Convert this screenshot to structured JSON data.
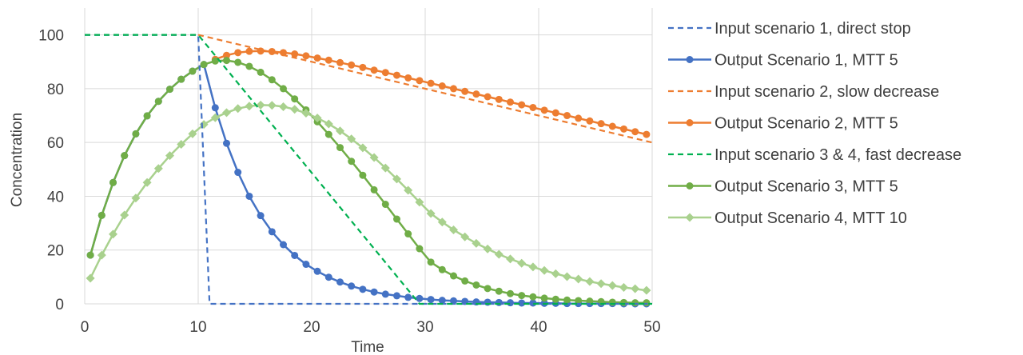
{
  "chart_data": {
    "type": "line",
    "title": "",
    "xlabel": "Time",
    "ylabel": "Concentration",
    "xlim": [
      0,
      50
    ],
    "ylim": [
      0,
      110
    ],
    "xticks": [
      0,
      10,
      20,
      30,
      40,
      50
    ],
    "yticks": [
      0,
      20,
      40,
      60,
      80,
      100
    ],
    "grid": true,
    "legend_position": "right",
    "series": [
      {
        "name": "Input scenario 1, direct stop",
        "color": "#4472C4",
        "style": "dashed",
        "marker": "none",
        "x": [
          0,
          10,
          10,
          11,
          50
        ],
        "y": [
          100,
          100,
          100,
          0,
          0
        ]
      },
      {
        "name": "Output Scenario 1, MTT 5",
        "color": "#4472C4",
        "style": "solid",
        "marker": "circle",
        "x": [
          0.5,
          1.5,
          2.5,
          3.5,
          4.5,
          5.5,
          6.5,
          7.5,
          8.5,
          9.5,
          10.5,
          11.5,
          12.5,
          13.5,
          14.5,
          15.5,
          16.5,
          17.5,
          18.5,
          19.5,
          20.5,
          21.5,
          22.5,
          23.5,
          24.5,
          25.5,
          26.5,
          27.5,
          28.5,
          29.5,
          30.5,
          31.5,
          32.5,
          33.5,
          34.5,
          35.5,
          36.5,
          37.5,
          38.5,
          39.5,
          40.5,
          41.5,
          42.5,
          43.5,
          44.5,
          45.5,
          46.5,
          47.5,
          48.5,
          49.5
        ],
        "y": [
          18.1,
          32.9,
          45.1,
          55.1,
          63.2,
          69.9,
          75.3,
          79.8,
          83.5,
          86.5,
          89.0,
          72.9,
          59.7,
          48.9,
          40.0,
          32.8,
          26.8,
          22.0,
          18.0,
          14.7,
          12.1,
          9.9,
          8.1,
          6.6,
          5.4,
          4.4,
          3.6,
          3.0,
          2.4,
          2.0,
          1.6,
          1.3,
          1.1,
          0.9,
          0.7,
          0.6,
          0.5,
          0.4,
          0.3,
          0.3,
          0.2,
          0.2,
          0.1,
          0.1,
          0.1,
          0.1,
          0.1,
          0.0,
          0.0,
          0.0
        ]
      },
      {
        "name": "Input scenario 2, slow decrease",
        "color": "#ED7D31",
        "style": "dashed",
        "marker": "none",
        "x": [
          10,
          50
        ],
        "y": [
          100,
          60
        ]
      },
      {
        "name": "Output Scenario 2, MTT 5",
        "color": "#ED7D31",
        "style": "solid",
        "marker": "circle",
        "x": [
          11.5,
          12.5,
          13.5,
          14.5,
          15.5,
          16.5,
          17.5,
          18.5,
          19.5,
          20.5,
          21.5,
          22.5,
          23.5,
          24.5,
          25.5,
          26.5,
          27.5,
          28.5,
          29.5,
          30.5,
          31.5,
          32.5,
          33.5,
          34.5,
          35.5,
          36.5,
          37.5,
          38.5,
          39.5,
          40.5,
          41.5,
          42.5,
          43.5,
          44.5,
          45.5,
          46.5,
          47.5,
          48.5,
          49.5
        ],
        "y": [
          90.9,
          92.4,
          93.4,
          93.9,
          94.0,
          93.8,
          93.4,
          92.9,
          92.2,
          91.4,
          90.6,
          89.7,
          88.8,
          87.9,
          86.9,
          86.0,
          85.0,
          84.0,
          83.0,
          82.0,
          81.0,
          80.0,
          79.0,
          78.0,
          77.0,
          76.0,
          75.0,
          74.0,
          73.0,
          72.0,
          71.0,
          70.0,
          69.0,
          68.0,
          67.0,
          66.0,
          65.0,
          64.0,
          63.0
        ]
      },
      {
        "name": "Input scenario 3 & 4, fast decrease",
        "color": "#00B050",
        "style": "dashed",
        "marker": "none",
        "x": [
          0,
          10,
          29.5,
          50
        ],
        "y": [
          100,
          100,
          0,
          0
        ]
      },
      {
        "name": "Output Scenario 3, MTT 5",
        "color": "#70AD47",
        "style": "solid",
        "marker": "circle",
        "x": [
          0.5,
          1.5,
          2.5,
          3.5,
          4.5,
          5.5,
          6.5,
          7.5,
          8.5,
          9.5,
          10.5,
          11.5,
          12.5,
          13.5,
          14.5,
          15.5,
          16.5,
          17.5,
          18.5,
          19.5,
          20.5,
          21.5,
          22.5,
          23.5,
          24.5,
          25.5,
          26.5,
          27.5,
          28.5,
          29.5,
          30.5,
          31.5,
          32.5,
          33.5,
          34.5,
          35.5,
          36.5,
          37.5,
          38.5,
          39.5,
          40.5,
          41.5,
          42.5,
          43.5,
          44.5,
          45.5,
          46.5,
          47.5,
          48.5,
          49.5
        ],
        "y": [
          18.1,
          32.9,
          45.1,
          55.1,
          63.2,
          69.9,
          75.3,
          79.8,
          83.5,
          86.5,
          89.0,
          90.3,
          90.5,
          89.8,
          88.3,
          86.1,
          83.3,
          80.0,
          76.2,
          72.1,
          67.7,
          63.0,
          58.1,
          53.0,
          47.8,
          42.4,
          37.0,
          31.5,
          26.0,
          20.5,
          15.5,
          12.7,
          10.4,
          8.5,
          7.0,
          5.7,
          4.7,
          3.8,
          3.1,
          2.6,
          2.1,
          1.7,
          1.4,
          1.2,
          1.0,
          0.8,
          0.6,
          0.5,
          0.4,
          0.4
        ]
      },
      {
        "name": "Output Scenario 4, MTT 10",
        "color": "#A9D18E",
        "style": "solid",
        "marker": "diamond",
        "x": [
          0.5,
          1.5,
          2.5,
          3.5,
          4.5,
          5.5,
          6.5,
          7.5,
          8.5,
          9.5,
          10.5,
          11.5,
          12.5,
          13.5,
          14.5,
          15.5,
          16.5,
          17.5,
          18.5,
          19.5,
          20.5,
          21.5,
          22.5,
          23.5,
          24.5,
          25.5,
          26.5,
          27.5,
          28.5,
          29.5,
          30.5,
          31.5,
          32.5,
          33.5,
          34.5,
          35.5,
          36.5,
          37.5,
          38.5,
          39.5,
          40.5,
          41.5,
          42.5,
          43.5,
          44.5,
          45.5,
          46.5,
          47.5,
          48.5,
          49.5
        ],
        "y": [
          9.5,
          18.1,
          25.9,
          33.0,
          39.3,
          45.1,
          50.3,
          55.1,
          59.3,
          63.2,
          66.7,
          69.2,
          71.1,
          72.6,
          73.5,
          73.9,
          73.8,
          73.3,
          72.3,
          70.9,
          69.1,
          66.9,
          64.3,
          61.3,
          58.0,
          54.4,
          50.5,
          46.4,
          42.2,
          37.8,
          33.6,
          30.4,
          27.5,
          24.9,
          22.5,
          20.4,
          18.4,
          16.7,
          15.1,
          13.7,
          12.4,
          11.2,
          10.1,
          9.2,
          8.3,
          7.5,
          6.8,
          6.1,
          5.6,
          5.0
        ]
      }
    ]
  }
}
